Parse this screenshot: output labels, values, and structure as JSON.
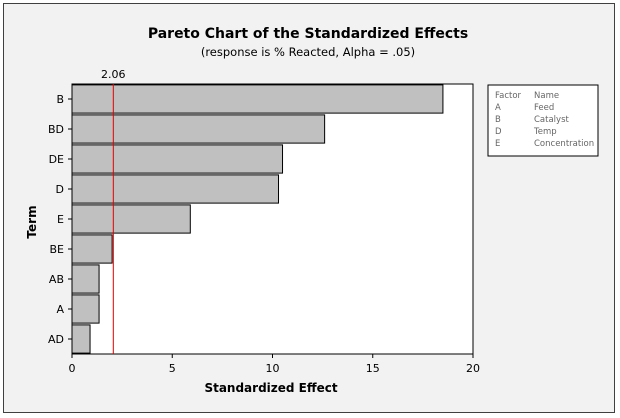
{
  "chart_data": {
    "type": "bar",
    "orientation": "horizontal",
    "title": "Pareto Chart of the Standardized Effects",
    "subtitle": "(response is % Reacted, Alpha = .05)",
    "xlabel": "Standardized Effect",
    "ylabel": "Term",
    "xlim": [
      0,
      20
    ],
    "xticks": [
      "0",
      "5",
      "10",
      "15",
      "20"
    ],
    "categories": [
      "B",
      "BD",
      "DE",
      "D",
      "E",
      "BE",
      "AB",
      "A",
      "AD"
    ],
    "values": [
      18.5,
      12.6,
      10.5,
      10.3,
      5.9,
      2.0,
      1.35,
      1.35,
      0.9
    ],
    "reference_line": {
      "value": 2.06,
      "label": "2.06",
      "color": "#e00000"
    },
    "bar_color": "#c0c0c0",
    "legend": {
      "placement": "right",
      "headers": [
        "Factor",
        "Name"
      ],
      "entries": [
        {
          "factor": "A",
          "name": "Feed"
        },
        {
          "factor": "B",
          "name": "Catalyst"
        },
        {
          "factor": "D",
          "name": "Temp"
        },
        {
          "factor": "E",
          "name": "Concentration"
        }
      ]
    }
  }
}
